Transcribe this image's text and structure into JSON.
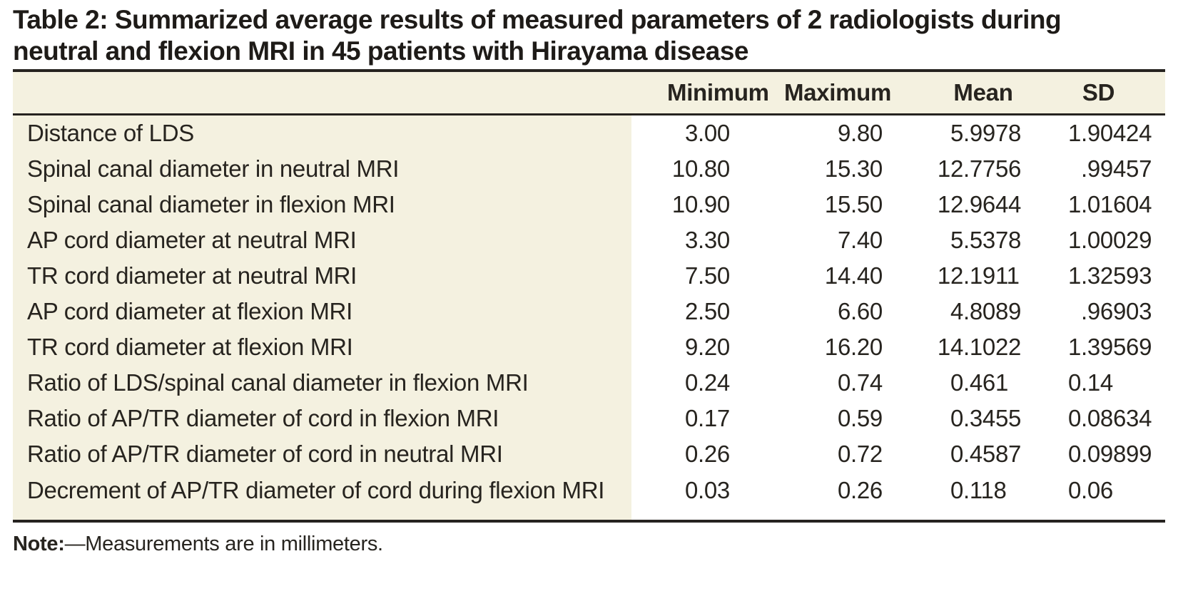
{
  "table": {
    "title_lines": [
      "Table 2: Summarized average results of measured parameters of 2 radiologists during",
      "neutral and flexion MRI in 45 patients with Hirayama disease"
    ],
    "columns": [
      "Minimum",
      "Maximum",
      "Mean",
      "SD"
    ],
    "rows": [
      {
        "label": "Distance of LDS",
        "min": "3.00",
        "max": "9.80",
        "mean": "5.9978",
        "sd": "1.90424"
      },
      {
        "label": "Spinal canal diameter in neutral MRI",
        "min": "10.80",
        "max": "15.30",
        "mean": "12.7756",
        "sd": ".99457"
      },
      {
        "label": "Spinal canal diameter in flexion MRI",
        "min": "10.90",
        "max": "15.50",
        "mean": "12.9644",
        "sd": "1.01604"
      },
      {
        "label": "AP cord diameter at neutral MRI",
        "min": "3.30",
        "max": "7.40",
        "mean": "5.5378",
        "sd": "1.00029"
      },
      {
        "label": "TR cord diameter at neutral MRI",
        "min": "7.50",
        "max": "14.40",
        "mean": "12.1911",
        "sd": "1.32593"
      },
      {
        "label": "AP cord diameter at flexion MRI",
        "min": "2.50",
        "max": "6.60",
        "mean": "4.8089",
        "sd": ".96903"
      },
      {
        "label": "TR cord diameter at flexion MRI",
        "min": "9.20",
        "max": "16.20",
        "mean": "14.1022",
        "sd": "1.39569"
      },
      {
        "label": "Ratio of LDS/spinal canal diameter in flexion MRI",
        "min": "0.24",
        "max": "0.74",
        "mean": "0.461",
        "sd": "0.14"
      },
      {
        "label": "Ratio of AP/TR diameter of cord in flexion MRI",
        "min": "0.17",
        "max": "0.59",
        "mean": "0.3455",
        "sd": "0.08634"
      },
      {
        "label": "Ratio of AP/TR diameter of cord in neutral MRI",
        "min": "0.26",
        "max": "0.72",
        "mean": "0.4587",
        "sd": "0.09899"
      },
      {
        "label": "Decrement of AP/TR diameter of cord during flexion MRI",
        "min": "0.03",
        "max": "0.26",
        "mean": "0.118",
        "sd": "0.06"
      }
    ],
    "note_label": "Note:",
    "note_text": "—Measurements are in millimeters."
  },
  "colors": {
    "header_and_label_background": "#f4f1e0",
    "rule": "#262320",
    "text": "#27241f",
    "page_background": "#ffffff"
  }
}
